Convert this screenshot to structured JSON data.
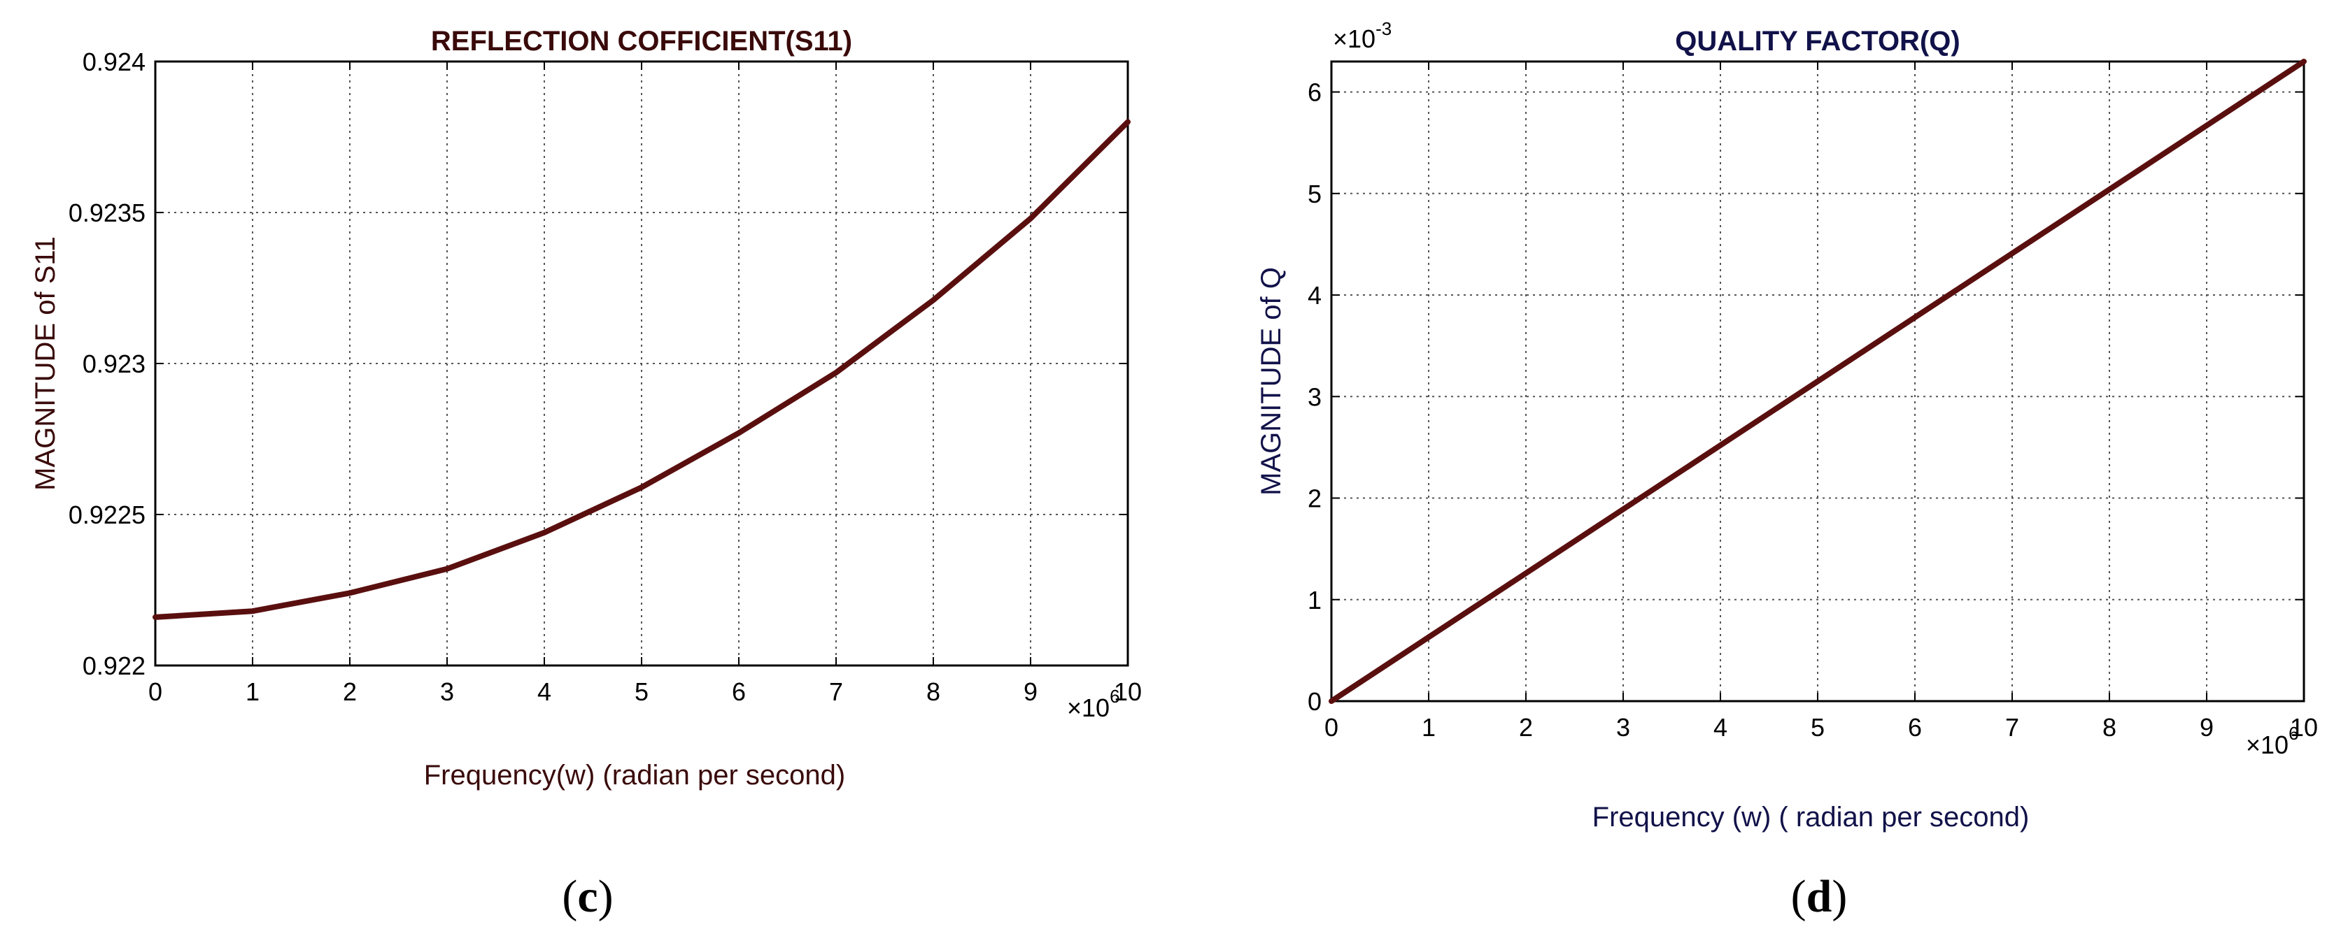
{
  "panel_c": {
    "paren_open": "(",
    "letter": "c",
    "paren_close": ")"
  },
  "panel_d": {
    "paren_open": "(",
    "letter": "d",
    "paren_close": ")"
  },
  "chart_data": [
    {
      "type": "line",
      "title": "REFLECTION COFFICIENT(S11)",
      "xlabel": "Frequency(w) (radian per second)",
      "ylabel": "MAGNITUDE of S11",
      "x_multiplier": "×10",
      "x_multiplier_exp": "6",
      "y_multiplier": "",
      "y_multiplier_exp": "",
      "xlim": [
        0,
        10
      ],
      "ylim": [
        0.922,
        0.924
      ],
      "x_ticks": [
        0,
        1,
        2,
        3,
        4,
        5,
        6,
        7,
        8,
        9,
        10
      ],
      "x_tick_labels": [
        "0",
        "1",
        "2",
        "3",
        "4",
        "5",
        "6",
        "7",
        "8",
        "9",
        "10"
      ],
      "y_ticks": [
        0.922,
        0.9225,
        0.923,
        0.9235,
        0.924
      ],
      "y_tick_labels": [
        "0.922",
        "0.9225",
        "0.923",
        "0.9235",
        "0.924"
      ],
      "grid": true,
      "series": [
        {
          "x": [
            0,
            1,
            2,
            3,
            4,
            5,
            6,
            7,
            8,
            9,
            10
          ],
          "y": [
            0.92216,
            0.92218,
            0.92224,
            0.92232,
            0.92244,
            0.92259,
            0.92277,
            0.92297,
            0.92321,
            0.92348,
            0.9238
          ]
        }
      ],
      "colors": {
        "line": "#5a0f0f",
        "title": "#3a0a0a",
        "labels": "#3a0a0a",
        "grid": "#555555"
      }
    },
    {
      "type": "line",
      "title": "QUALITY FACTOR(Q)",
      "xlabel": "Frequency (w) ( radian per second)",
      "ylabel": "MAGNITUDE of Q",
      "x_multiplier": "×10",
      "x_multiplier_exp": "6",
      "y_multiplier": "×10",
      "y_multiplier_exp": "-3",
      "xlim": [
        0,
        10
      ],
      "ylim": [
        0,
        6.3
      ],
      "x_ticks": [
        0,
        1,
        2,
        3,
        4,
        5,
        6,
        7,
        8,
        9,
        10
      ],
      "x_tick_labels": [
        "0",
        "1",
        "2",
        "3",
        "4",
        "5",
        "6",
        "7",
        "8",
        "9",
        "10"
      ],
      "y_ticks": [
        0,
        1,
        2,
        3,
        4,
        5,
        6
      ],
      "y_tick_labels": [
        "0",
        "1",
        "2",
        "3",
        "4",
        "5",
        "6"
      ],
      "grid": true,
      "series": [
        {
          "x": [
            0,
            10
          ],
          "y": [
            0,
            6.3
          ]
        }
      ],
      "colors": {
        "line": "#5a0f0f",
        "title": "#12124a",
        "labels": "#12124a",
        "grid": "#555555"
      }
    }
  ]
}
